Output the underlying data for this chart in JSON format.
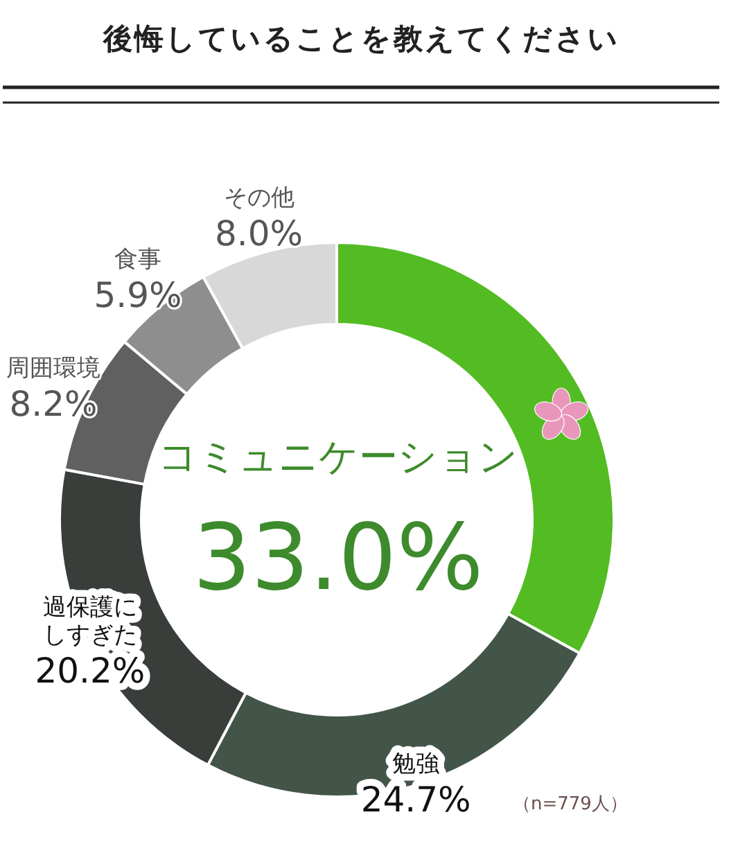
{
  "chart_data": {
    "type": "donut",
    "title": "後悔していることを教えてください",
    "categories": [
      "コミュニケーション",
      "勉強",
      "過保護にしすぎた",
      "周囲環境",
      "食事",
      "その他"
    ],
    "values": [
      33.0,
      24.7,
      20.2,
      8.2,
      5.9,
      8.0
    ],
    "value_labels": [
      "33.0%",
      "24.7%",
      "20.2%",
      "8.2%",
      "5.9%",
      "8.0%"
    ],
    "colors": [
      "#52bc22",
      "#435448",
      "#393e3b",
      "#606060",
      "#8e8e8e",
      "#d8d8d8"
    ],
    "annotations": [
      "（n=779人）"
    ]
  }
}
